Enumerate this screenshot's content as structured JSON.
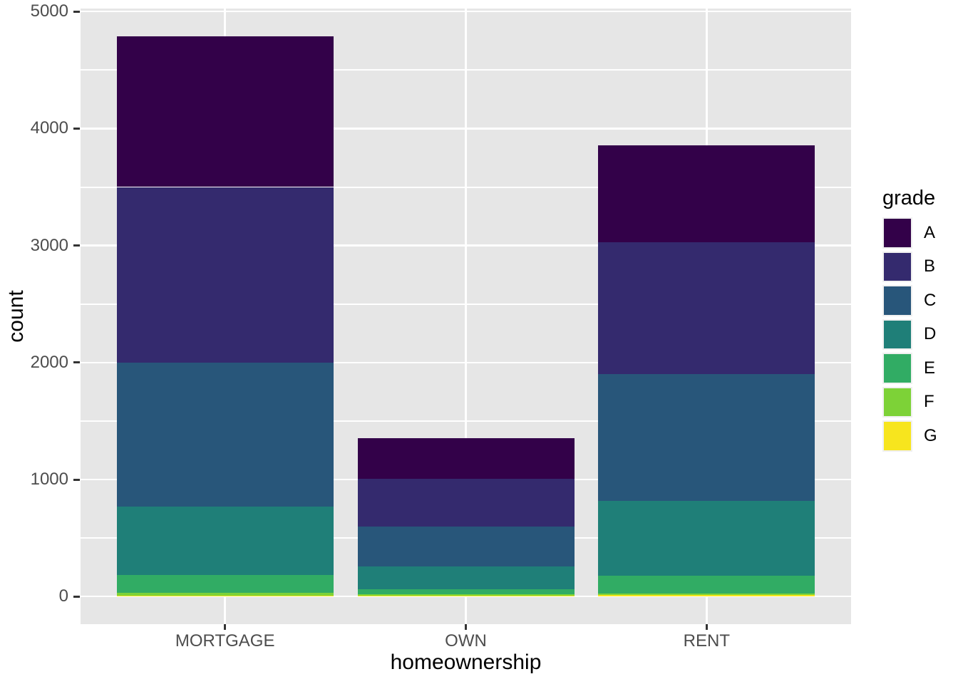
{
  "figure": {
    "background": "#FFFFFF",
    "panel_background": "#E6E6E6",
    "grid_color": "#FFFFFF",
    "tick_mark_color": "#333333",
    "axis_text_color": "#4D4D4D",
    "axis_title_color": "#000000"
  },
  "axes": {
    "x_title": "homeownership",
    "y_title": "count",
    "x_tick_labels": [
      "MORTGAGE",
      "OWN",
      "RENT"
    ],
    "y_tick_labels": [
      "0",
      "1000",
      "2000",
      "3000",
      "4000",
      "5000"
    ]
  },
  "legend": {
    "title": "grade",
    "position": "right"
  },
  "chart_data": {
    "type": "bar",
    "stacked": true,
    "stack_order": "first listed series renders on top of each bar",
    "title": "",
    "xlabel": "homeownership",
    "ylabel": "count",
    "categories": [
      "MORTGAGE",
      "OWN",
      "RENT"
    ],
    "series": [
      {
        "name": "A",
        "color": "#330149",
        "values": [
          1289,
          348,
          833
        ]
      },
      {
        "name": "B",
        "color": "#342A6E",
        "values": [
          1500,
          405,
          1125
        ]
      },
      {
        "name": "C",
        "color": "#28567A",
        "values": [
          1230,
          345,
          1080
        ]
      },
      {
        "name": "D",
        "color": "#1F7F78",
        "values": [
          587,
          195,
          645
        ]
      },
      {
        "name": "E",
        "color": "#31AC64",
        "values": [
          153,
          42,
          151
        ]
      },
      {
        "name": "F",
        "color": "#7DD237",
        "values": [
          23,
          13,
          13
        ]
      },
      {
        "name": "G",
        "color": "#F7E51E",
        "values": [
          7,
          5,
          11
        ]
      }
    ],
    "totals": [
      4789,
      1353,
      3858
    ],
    "y_ticks": [
      0,
      1000,
      2000,
      3000,
      4000,
      5000
    ],
    "y_minor_ticks": [
      500,
      1500,
      2500,
      3500,
      4500
    ],
    "ylim": [
      -240,
      5030
    ],
    "grid": "white major+minor horizontal lines; white major vertical line at each category",
    "legend_position": "right",
    "legend_title": "grade"
  }
}
